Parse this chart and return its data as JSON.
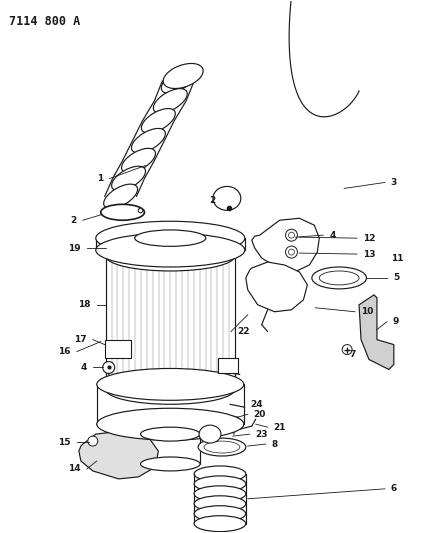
{
  "title": "7114 800 A",
  "bg_color": "#ffffff",
  "line_color": "#1a1a1a",
  "title_fontsize": 8.5,
  "label_fontsize": 6.5,
  "lw": 0.85
}
